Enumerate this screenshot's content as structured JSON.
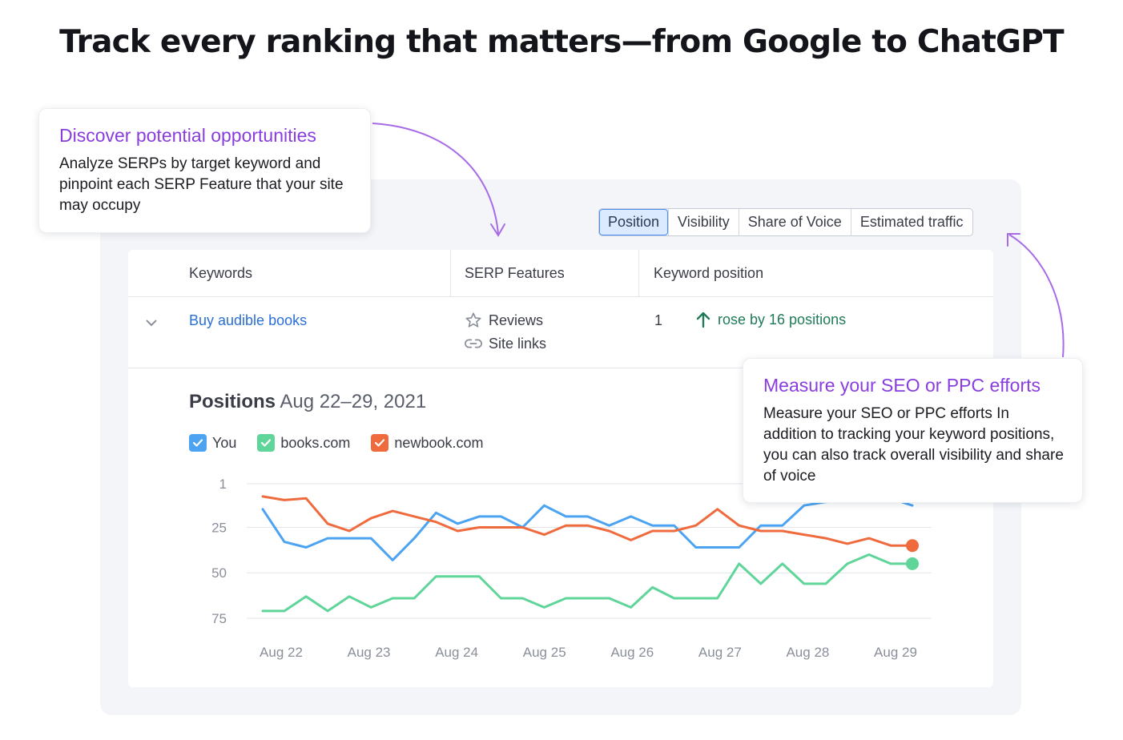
{
  "headline": "Track every ranking that matters—from Google to ChatGPT",
  "tabs": [
    {
      "label": "Position",
      "active": true
    },
    {
      "label": "Visibility",
      "active": false
    },
    {
      "label": "Share of Voice",
      "active": false
    },
    {
      "label": "Estimated traffic",
      "active": false
    }
  ],
  "table": {
    "headers": {
      "keywords": "Keywords",
      "serp": "SERP Features",
      "position": "Keyword position"
    },
    "row": {
      "keyword": "Buy audible books",
      "serp_features": [
        {
          "label": "Reviews",
          "icon": "star-icon"
        },
        {
          "label": "Site links",
          "icon": "link-icon"
        }
      ],
      "position": "1",
      "change": "rose by 16 positions",
      "change_icon": "arrow-up-icon"
    }
  },
  "chart_panel": {
    "title_bold": "Positions",
    "title_range": "Aug 22–29, 2021"
  },
  "legend": [
    {
      "label": "You",
      "color": "#4ba3f2"
    },
    {
      "label": "books.com",
      "color": "#5fd59a"
    },
    {
      "label": "newbook.com",
      "color": "#ef6a3c"
    }
  ],
  "chart_data": {
    "type": "line",
    "x_tick_labels": [
      "Aug 22",
      "Aug 23",
      "Aug 24",
      "Aug 25",
      "Aug 26",
      "Aug 27",
      "Aug 28",
      "Aug 29"
    ],
    "y_tick_labels": [
      "1",
      "25",
      "50",
      "75"
    ],
    "y_ticks": [
      1,
      25,
      50,
      75
    ],
    "ylim": [
      1,
      75
    ],
    "y_inverted": true,
    "grid": true,
    "points_per_series": 31,
    "series": [
      {
        "name": "You",
        "color": "#4ba3f2",
        "values": [
          15,
          33,
          36,
          31,
          31,
          31,
          43,
          31,
          17,
          23,
          19,
          19,
          25,
          13,
          19,
          19,
          24,
          19,
          24,
          24,
          36,
          36,
          36,
          24,
          24,
          13,
          11,
          10,
          9,
          9,
          13
        ]
      },
      {
        "name": "books.com",
        "color": "#5fd59a",
        "values": [
          71,
          71,
          63,
          71,
          63,
          69,
          64,
          64,
          52,
          52,
          52,
          64,
          64,
          69,
          64,
          64,
          64,
          69,
          58,
          64,
          64,
          64,
          45,
          56,
          45,
          56,
          56,
          45,
          40,
          45,
          45
        ]
      },
      {
        "name": "newbook.com",
        "color": "#ef6a3c",
        "values": [
          8,
          10,
          9,
          23,
          27,
          20,
          16,
          19,
          22,
          27,
          25,
          25,
          25,
          29,
          24,
          24,
          27,
          32,
          27,
          27,
          24,
          15,
          24,
          27,
          27,
          29,
          31,
          34,
          31,
          35,
          35
        ]
      }
    ]
  },
  "callouts": [
    {
      "title": "Discover potential opportunities",
      "body": "Analyze SERPs by target keyword and pinpoint each SERP Feature that your site may occupy"
    },
    {
      "title": "Measure your SEO or PPC efforts",
      "body": "Measure your SEO or PPC efforts In addition to tracking your keyword positions, you can also track overall visibility and share of voice"
    }
  ]
}
